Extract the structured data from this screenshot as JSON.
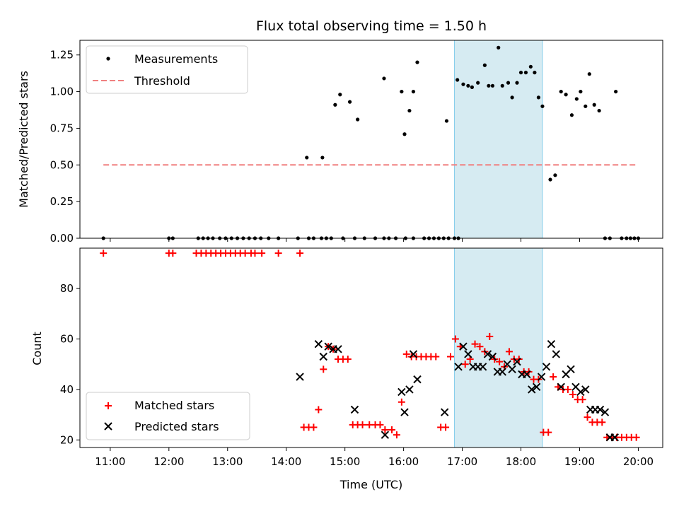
{
  "chart_data": [
    {
      "type": "scatter",
      "title": "Flux total observing time = 1.50 h",
      "ylabel": "Matched/Predicted stars",
      "xlabel": "",
      "xlim": [
        "10:29",
        "20:25"
      ],
      "ylim": [
        0,
        1.35
      ],
      "yticks": [
        "0.00",
        "0.25",
        "0.50",
        "0.75",
        "1.00",
        "1.25"
      ],
      "xtick_values": [
        "11:00",
        "12:00",
        "13:00",
        "14:00",
        "15:00",
        "16:00",
        "17:00",
        "18:00",
        "19:00",
        "20:00"
      ],
      "highlight_span": [
        "16:52",
        "18:22"
      ],
      "legend_position": "upper-left",
      "legend": [
        "Measurements",
        "Threshold"
      ],
      "threshold": {
        "x": [
          "10:53",
          "19:58"
        ],
        "y": 0.5,
        "color": "#f08080"
      },
      "series": [
        {
          "name": "Measurements",
          "marker": "dot",
          "color": "#000000",
          "points": [
            [
              "10:53",
              0
            ],
            [
              "12:00",
              0
            ],
            [
              "12:04",
              0
            ],
            [
              "12:30",
              0
            ],
            [
              "12:35",
              0
            ],
            [
              "12:40",
              0
            ],
            [
              "12:45",
              0
            ],
            [
              "12:52",
              0
            ],
            [
              "12:58",
              0
            ],
            [
              "13:04",
              0
            ],
            [
              "13:10",
              0
            ],
            [
              "13:16",
              0
            ],
            [
              "13:22",
              0
            ],
            [
              "13:28",
              0
            ],
            [
              "13:34",
              0
            ],
            [
              "13:42",
              0
            ],
            [
              "13:52",
              0
            ],
            [
              "14:12",
              0
            ],
            [
              "14:23",
              0
            ],
            [
              "14:28",
              0
            ],
            [
              "14:36",
              0
            ],
            [
              "14:41",
              0
            ],
            [
              "14:46",
              0
            ],
            [
              "14:58",
              0
            ],
            [
              "15:10",
              0
            ],
            [
              "15:20",
              0
            ],
            [
              "15:31",
              0
            ],
            [
              "15:40",
              0
            ],
            [
              "15:45",
              0
            ],
            [
              "15:52",
              0
            ],
            [
              "16:02",
              0
            ],
            [
              "16:10",
              0
            ],
            [
              "16:21",
              0
            ],
            [
              "16:26",
              0
            ],
            [
              "16:31",
              0
            ],
            [
              "16:36",
              0
            ],
            [
              "16:41",
              0
            ],
            [
              "16:46",
              0
            ],
            [
              "16:52",
              0
            ],
            [
              "16:56",
              0
            ],
            [
              "14:21",
              0.55
            ],
            [
              "14:37",
              0.55
            ],
            [
              "14:50",
              0.91
            ],
            [
              "14:55",
              0.98
            ],
            [
              "15:05",
              0.93
            ],
            [
              "15:13",
              0.81
            ],
            [
              "15:40",
              1.09
            ],
            [
              "15:58",
              1.0
            ],
            [
              "16:01",
              0.71
            ],
            [
              "16:06",
              0.87
            ],
            [
              "16:10",
              1.0
            ],
            [
              "16:14",
              1.2
            ],
            [
              "16:44",
              0.8
            ],
            [
              "16:55",
              1.08
            ],
            [
              "17:01",
              1.05
            ],
            [
              "17:06",
              1.04
            ],
            [
              "17:10",
              1.03
            ],
            [
              "17:16",
              1.06
            ],
            [
              "17:23",
              1.18
            ],
            [
              "17:27",
              1.04
            ],
            [
              "17:31",
              1.04
            ],
            [
              "17:37",
              1.3
            ],
            [
              "17:41",
              1.04
            ],
            [
              "17:47",
              1.06
            ],
            [
              "17:51",
              0.96
            ],
            [
              "17:56",
              1.06
            ],
            [
              "18:00",
              1.13
            ],
            [
              "18:05",
              1.13
            ],
            [
              "18:10",
              1.17
            ],
            [
              "18:14",
              1.13
            ],
            [
              "18:18",
              0.96
            ],
            [
              "18:22",
              0.9
            ],
            [
              "18:30",
              0.4
            ],
            [
              "18:35",
              0.43
            ],
            [
              "18:41",
              1.0
            ],
            [
              "18:46",
              0.98
            ],
            [
              "18:52",
              0.84
            ],
            [
              "18:57",
              0.95
            ],
            [
              "19:01",
              1.0
            ],
            [
              "19:06",
              0.9
            ],
            [
              "19:10",
              1.12
            ],
            [
              "19:15",
              0.91
            ],
            [
              "19:20",
              0.87
            ],
            [
              "19:26",
              0
            ],
            [
              "19:31",
              0
            ],
            [
              "19:37",
              1.0
            ],
            [
              "19:43",
              0
            ],
            [
              "19:48",
              0
            ],
            [
              "19:52",
              0
            ],
            [
              "19:56",
              0
            ],
            [
              "20:00",
              0
            ]
          ]
        }
      ]
    },
    {
      "type": "scatter",
      "title": "",
      "xlabel": "Time (UTC)",
      "ylabel": "Count",
      "xlim": [
        "10:29",
        "20:25"
      ],
      "ylim": [
        17,
        96
      ],
      "yticks": [
        "20",
        "40",
        "60",
        "80"
      ],
      "xticks": [
        "11:00",
        "12:00",
        "13:00",
        "14:00",
        "15:00",
        "16:00",
        "17:00",
        "18:00",
        "19:00",
        "20:00"
      ],
      "highlight_span": [
        "16:52",
        "18:22"
      ],
      "legend_position": "lower-left",
      "legend": [
        "Matched stars",
        "Predicted stars"
      ],
      "series": [
        {
          "name": "Matched stars",
          "marker": "plus",
          "color": "#ff0000",
          "points": [
            [
              "10:53",
              94
            ],
            [
              "12:00",
              94
            ],
            [
              "12:04",
              94
            ],
            [
              "12:28",
              94
            ],
            [
              "12:33",
              94
            ],
            [
              "12:38",
              94
            ],
            [
              "12:43",
              94
            ],
            [
              "12:48",
              94
            ],
            [
              "12:53",
              94
            ],
            [
              "12:58",
              94
            ],
            [
              "13:03",
              94
            ],
            [
              "13:08",
              94
            ],
            [
              "13:13",
              94
            ],
            [
              "13:18",
              94
            ],
            [
              "13:24",
              94
            ],
            [
              "13:28",
              94
            ],
            [
              "13:35",
              94
            ],
            [
              "13:52",
              94
            ],
            [
              "14:14",
              94
            ],
            [
              "14:18",
              25
            ],
            [
              "14:23",
              25
            ],
            [
              "14:28",
              25
            ],
            [
              "14:33",
              32
            ],
            [
              "14:38",
              48
            ],
            [
              "14:43",
              57
            ],
            [
              "14:48",
              56
            ],
            [
              "14:53",
              52
            ],
            [
              "14:58",
              52
            ],
            [
              "15:03",
              52
            ],
            [
              "15:08",
              26
            ],
            [
              "15:13",
              26
            ],
            [
              "15:18",
              26
            ],
            [
              "15:25",
              26
            ],
            [
              "15:31",
              26
            ],
            [
              "15:36",
              26
            ],
            [
              "15:41",
              24
            ],
            [
              "15:48",
              24
            ],
            [
              "15:53",
              22
            ],
            [
              "15:58",
              35
            ],
            [
              "16:03",
              54
            ],
            [
              "16:08",
              53
            ],
            [
              "16:13",
              53
            ],
            [
              "16:18",
              53
            ],
            [
              "16:23",
              53
            ],
            [
              "16:28",
              53
            ],
            [
              "16:33",
              53
            ],
            [
              "16:38",
              25
            ],
            [
              "16:43",
              25
            ],
            [
              "16:48",
              53
            ],
            [
              "16:53",
              60
            ],
            [
              "16:58",
              57
            ],
            [
              "17:03",
              50
            ],
            [
              "17:08",
              52
            ],
            [
              "17:13",
              58
            ],
            [
              "17:18",
              57
            ],
            [
              "17:23",
              55
            ],
            [
              "17:28",
              61
            ],
            [
              "17:33",
              52
            ],
            [
              "17:38",
              51
            ],
            [
              "17:43",
              49
            ],
            [
              "17:48",
              55
            ],
            [
              "17:53",
              52
            ],
            [
              "17:58",
              52
            ],
            [
              "18:03",
              47
            ],
            [
              "18:08",
              47
            ],
            [
              "18:13",
              44
            ],
            [
              "18:18",
              44
            ],
            [
              "18:23",
              23
            ],
            [
              "18:28",
              23
            ],
            [
              "18:33",
              45
            ],
            [
              "18:38",
              41
            ],
            [
              "18:43",
              40
            ],
            [
              "18:48",
              40
            ],
            [
              "18:53",
              38
            ],
            [
              "18:58",
              36
            ],
            [
              "19:03",
              36
            ],
            [
              "19:08",
              29
            ],
            [
              "19:13",
              27
            ],
            [
              "19:18",
              27
            ],
            [
              "19:23",
              27
            ],
            [
              "19:28",
              21
            ],
            [
              "19:33",
              21
            ],
            [
              "19:38",
              21
            ],
            [
              "19:43",
              21
            ],
            [
              "19:48",
              21
            ],
            [
              "19:53",
              21
            ],
            [
              "19:58",
              21
            ]
          ]
        },
        {
          "name": "Predicted stars",
          "marker": "x",
          "color": "#000000",
          "points": [
            [
              "14:14",
              45
            ],
            [
              "14:33",
              58
            ],
            [
              "14:38",
              53
            ],
            [
              "14:43",
              57
            ],
            [
              "14:48",
              56
            ],
            [
              "14:53",
              56
            ],
            [
              "15:10",
              32
            ],
            [
              "15:41",
              22
            ],
            [
              "15:58",
              39
            ],
            [
              "16:01",
              31
            ],
            [
              "16:06",
              40
            ],
            [
              "16:10",
              54
            ],
            [
              "16:14",
              44
            ],
            [
              "16:42",
              31
            ],
            [
              "16:56",
              49
            ],
            [
              "17:01",
              57
            ],
            [
              "17:06",
              54
            ],
            [
              "17:11",
              49
            ],
            [
              "17:16",
              49
            ],
            [
              "17:21",
              49
            ],
            [
              "17:26",
              54
            ],
            [
              "17:31",
              53
            ],
            [
              "17:36",
              47
            ],
            [
              "17:41",
              47
            ],
            [
              "17:46",
              50
            ],
            [
              "17:51",
              48
            ],
            [
              "17:56",
              51
            ],
            [
              "18:01",
              46
            ],
            [
              "18:06",
              46
            ],
            [
              "18:11",
              40
            ],
            [
              "18:16",
              41
            ],
            [
              "18:21",
              45
            ],
            [
              "18:26",
              49
            ],
            [
              "18:31",
              58
            ],
            [
              "18:36",
              54
            ],
            [
              "18:41",
              41
            ],
            [
              "18:46",
              46
            ],
            [
              "18:51",
              48
            ],
            [
              "18:56",
              41
            ],
            [
              "19:01",
              39
            ],
            [
              "19:06",
              40
            ],
            [
              "19:11",
              32
            ],
            [
              "19:16",
              32
            ],
            [
              "19:21",
              32
            ],
            [
              "19:26",
              31
            ],
            [
              "19:31",
              21
            ],
            [
              "19:36",
              21
            ]
          ]
        }
      ]
    }
  ],
  "colors": {
    "span_fill": "#add8e6",
    "span_edge": "#87ceeb",
    "matched": "#ff0000",
    "predicted": "#000000",
    "threshold": "#f08080"
  }
}
